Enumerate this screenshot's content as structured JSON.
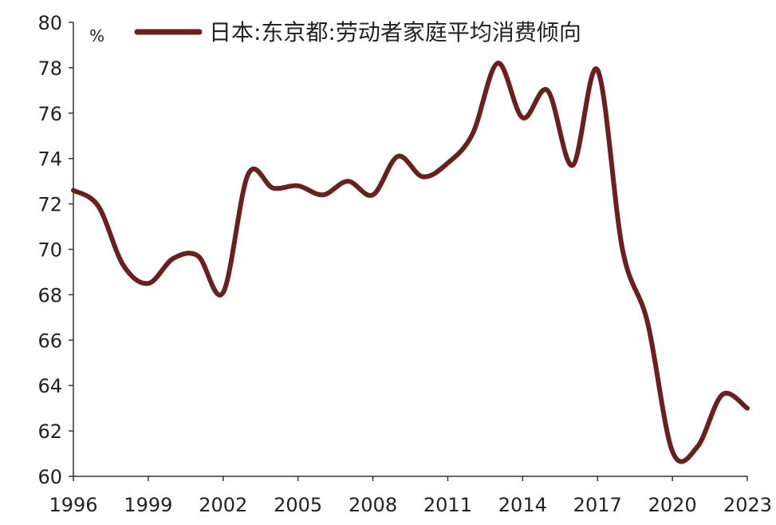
{
  "chart_data": {
    "type": "line",
    "ylabel": "%",
    "ylim": [
      60,
      80
    ],
    "y_ticks": [
      "60",
      "62",
      "64",
      "66",
      "68",
      "70",
      "72",
      "74",
      "76",
      "78",
      "80"
    ],
    "x_ticks": [
      "1996",
      "1999",
      "2002",
      "2005",
      "2008",
      "2011",
      "2014",
      "2017",
      "2020",
      "2023"
    ],
    "xlim": [
      1996,
      2023
    ],
    "grid": false,
    "legend_position": "top",
    "series": [
      {
        "name": "日本:东京都:劳动者家庭平均消费倾向",
        "color": "#6b1f1f",
        "x": [
          1996,
          1997,
          1998,
          1999,
          2000,
          2001,
          2002,
          2003,
          2004,
          2005,
          2006,
          2007,
          2008,
          2009,
          2010,
          2011,
          2012,
          2013,
          2014,
          2015,
          2016,
          2017,
          2018,
          2019,
          2020,
          2021,
          2022,
          2023
        ],
        "values": [
          72.6,
          71.9,
          69.3,
          68.5,
          69.6,
          69.7,
          68.1,
          73.3,
          72.7,
          72.8,
          72.4,
          73.0,
          72.4,
          74.1,
          73.2,
          73.8,
          75.1,
          78.2,
          75.8,
          77.0,
          73.7,
          77.9,
          70.0,
          66.8,
          61.1,
          61.3,
          63.6,
          63.0
        ]
      }
    ]
  }
}
